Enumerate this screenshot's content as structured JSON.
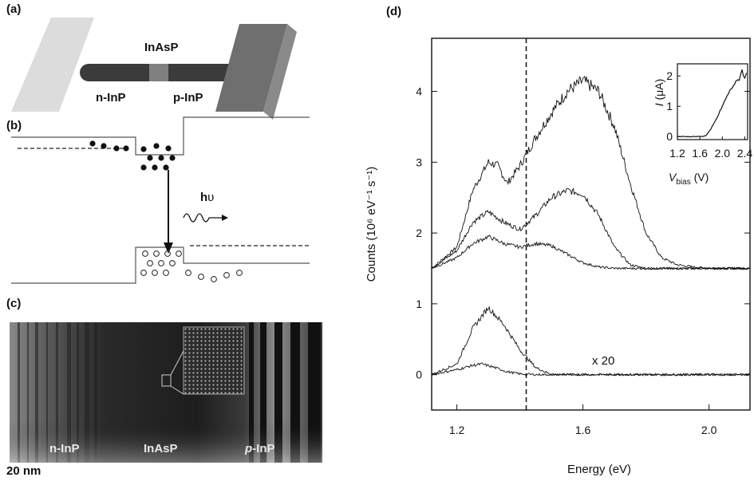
{
  "figure": {
    "panels": {
      "a": {
        "label": "(a)",
        "labels": {
          "center": "InAsP",
          "left": "n-InP",
          "right": "p-InP"
        }
      },
      "b": {
        "label": "(b)",
        "photon_h": "h",
        "photon_nu": "υ"
      },
      "c": {
        "label": "(c)",
        "labels": {
          "left": "n-InP",
          "center": "InAsP",
          "right_prefix": "p",
          "right_suffix": "-InP"
        },
        "scale": "20 nm"
      },
      "d": {
        "label": "(d)",
        "ylabel": "Counts (10⁶ eV⁻¹ s⁻¹)",
        "xlabel": "Energy (eV)",
        "annotation": "x 20",
        "inset": {
          "ylabel_italic": "I",
          "ylabel_rest": " (μA)",
          "xlabel_italic": "V",
          "xlabel_sub": "bias",
          "xlabel_rest": " (V)"
        }
      }
    }
  },
  "chart_data": [
    {
      "type": "line",
      "xlabel": "Energy (eV)",
      "ylabel": "Counts (10⁶ eV⁻¹ s⁻¹)",
      "xlim": [
        1.12,
        2.13
      ],
      "ylim": [
        -0.5,
        4.75
      ],
      "xticks": [
        1.2,
        1.6,
        2.0
      ],
      "xtick_labels": [
        "1.2",
        "1.6",
        "2.0"
      ],
      "yticks": [
        0,
        1,
        2,
        3,
        4
      ],
      "ytick_labels": [
        "0",
        "1",
        "2",
        "3",
        "4"
      ],
      "vline_x": 1.42,
      "annotation": "x 20",
      "grid": false,
      "series": [
        {
          "x": [
            1.12,
            1.2,
            1.25,
            1.3,
            1.33,
            1.36,
            1.4,
            1.45,
            1.5,
            1.55,
            1.6,
            1.65,
            1.7,
            1.75,
            1.8,
            1.85,
            1.9,
            1.95,
            2.0,
            2.05,
            2.13
          ],
          "values": [
            1.5,
            1.8,
            2.6,
            3.0,
            2.95,
            2.7,
            2.95,
            3.35,
            3.7,
            4.0,
            4.15,
            4.0,
            3.5,
            2.7,
            2.0,
            1.65,
            1.55,
            1.52,
            1.5,
            1.5,
            1.5
          ]
        },
        {
          "x": [
            1.12,
            1.2,
            1.25,
            1.3,
            1.35,
            1.4,
            1.45,
            1.5,
            1.55,
            1.6,
            1.65,
            1.7,
            1.75,
            1.8,
            1.85,
            1.9,
            2.0,
            2.13
          ],
          "values": [
            1.5,
            1.75,
            2.15,
            2.3,
            2.15,
            2.05,
            2.25,
            2.5,
            2.6,
            2.55,
            2.25,
            1.8,
            1.55,
            1.5,
            1.5,
            1.5,
            1.5,
            1.5
          ]
        },
        {
          "x": [
            1.12,
            1.2,
            1.25,
            1.3,
            1.35,
            1.4,
            1.45,
            1.5,
            1.55,
            1.6,
            1.65,
            1.7,
            1.8,
            2.0,
            2.13
          ],
          "values": [
            1.5,
            1.65,
            1.85,
            1.95,
            1.85,
            1.8,
            1.85,
            1.82,
            1.7,
            1.58,
            1.52,
            1.5,
            1.5,
            1.5,
            1.5
          ]
        },
        {
          "x": [
            1.12,
            1.2,
            1.25,
            1.3,
            1.35,
            1.4,
            1.45,
            1.5,
            1.55,
            1.6,
            2.13
          ],
          "values": [
            0.0,
            0.15,
            0.65,
            0.95,
            0.7,
            0.35,
            0.1,
            0.0,
            0.0,
            0.0,
            0.0
          ]
        },
        {
          "x": [
            1.12,
            1.2,
            1.25,
            1.28,
            1.32,
            1.36,
            1.4,
            1.45,
            2.13
          ],
          "values": [
            0.0,
            0.07,
            0.13,
            0.15,
            0.1,
            0.04,
            0.01,
            0.0,
            0.0
          ]
        }
      ]
    },
    {
      "type": "line",
      "xlabel": "Vbias (V)",
      "ylabel": "I (μA)",
      "xlim": [
        1.2,
        2.45
      ],
      "ylim": [
        -0.1,
        2.4
      ],
      "xticks": [
        1.2,
        1.6,
        2.0,
        2.4
      ],
      "xtick_labels": [
        "1.2",
        "1.6",
        "2.0",
        "2.4"
      ],
      "yticks": [
        0,
        1,
        2
      ],
      "ytick_labels": [
        "0",
        "1",
        "2"
      ],
      "grid": false,
      "series": [
        {
          "x": [
            1.2,
            1.6,
            1.7,
            1.8,
            1.9,
            2.0,
            2.1,
            2.2,
            2.3,
            2.35,
            2.4,
            2.43
          ],
          "values": [
            0,
            0,
            0.02,
            0.25,
            0.6,
            1.0,
            1.4,
            1.7,
            1.9,
            2.2,
            1.9,
            2.1
          ]
        }
      ]
    }
  ]
}
